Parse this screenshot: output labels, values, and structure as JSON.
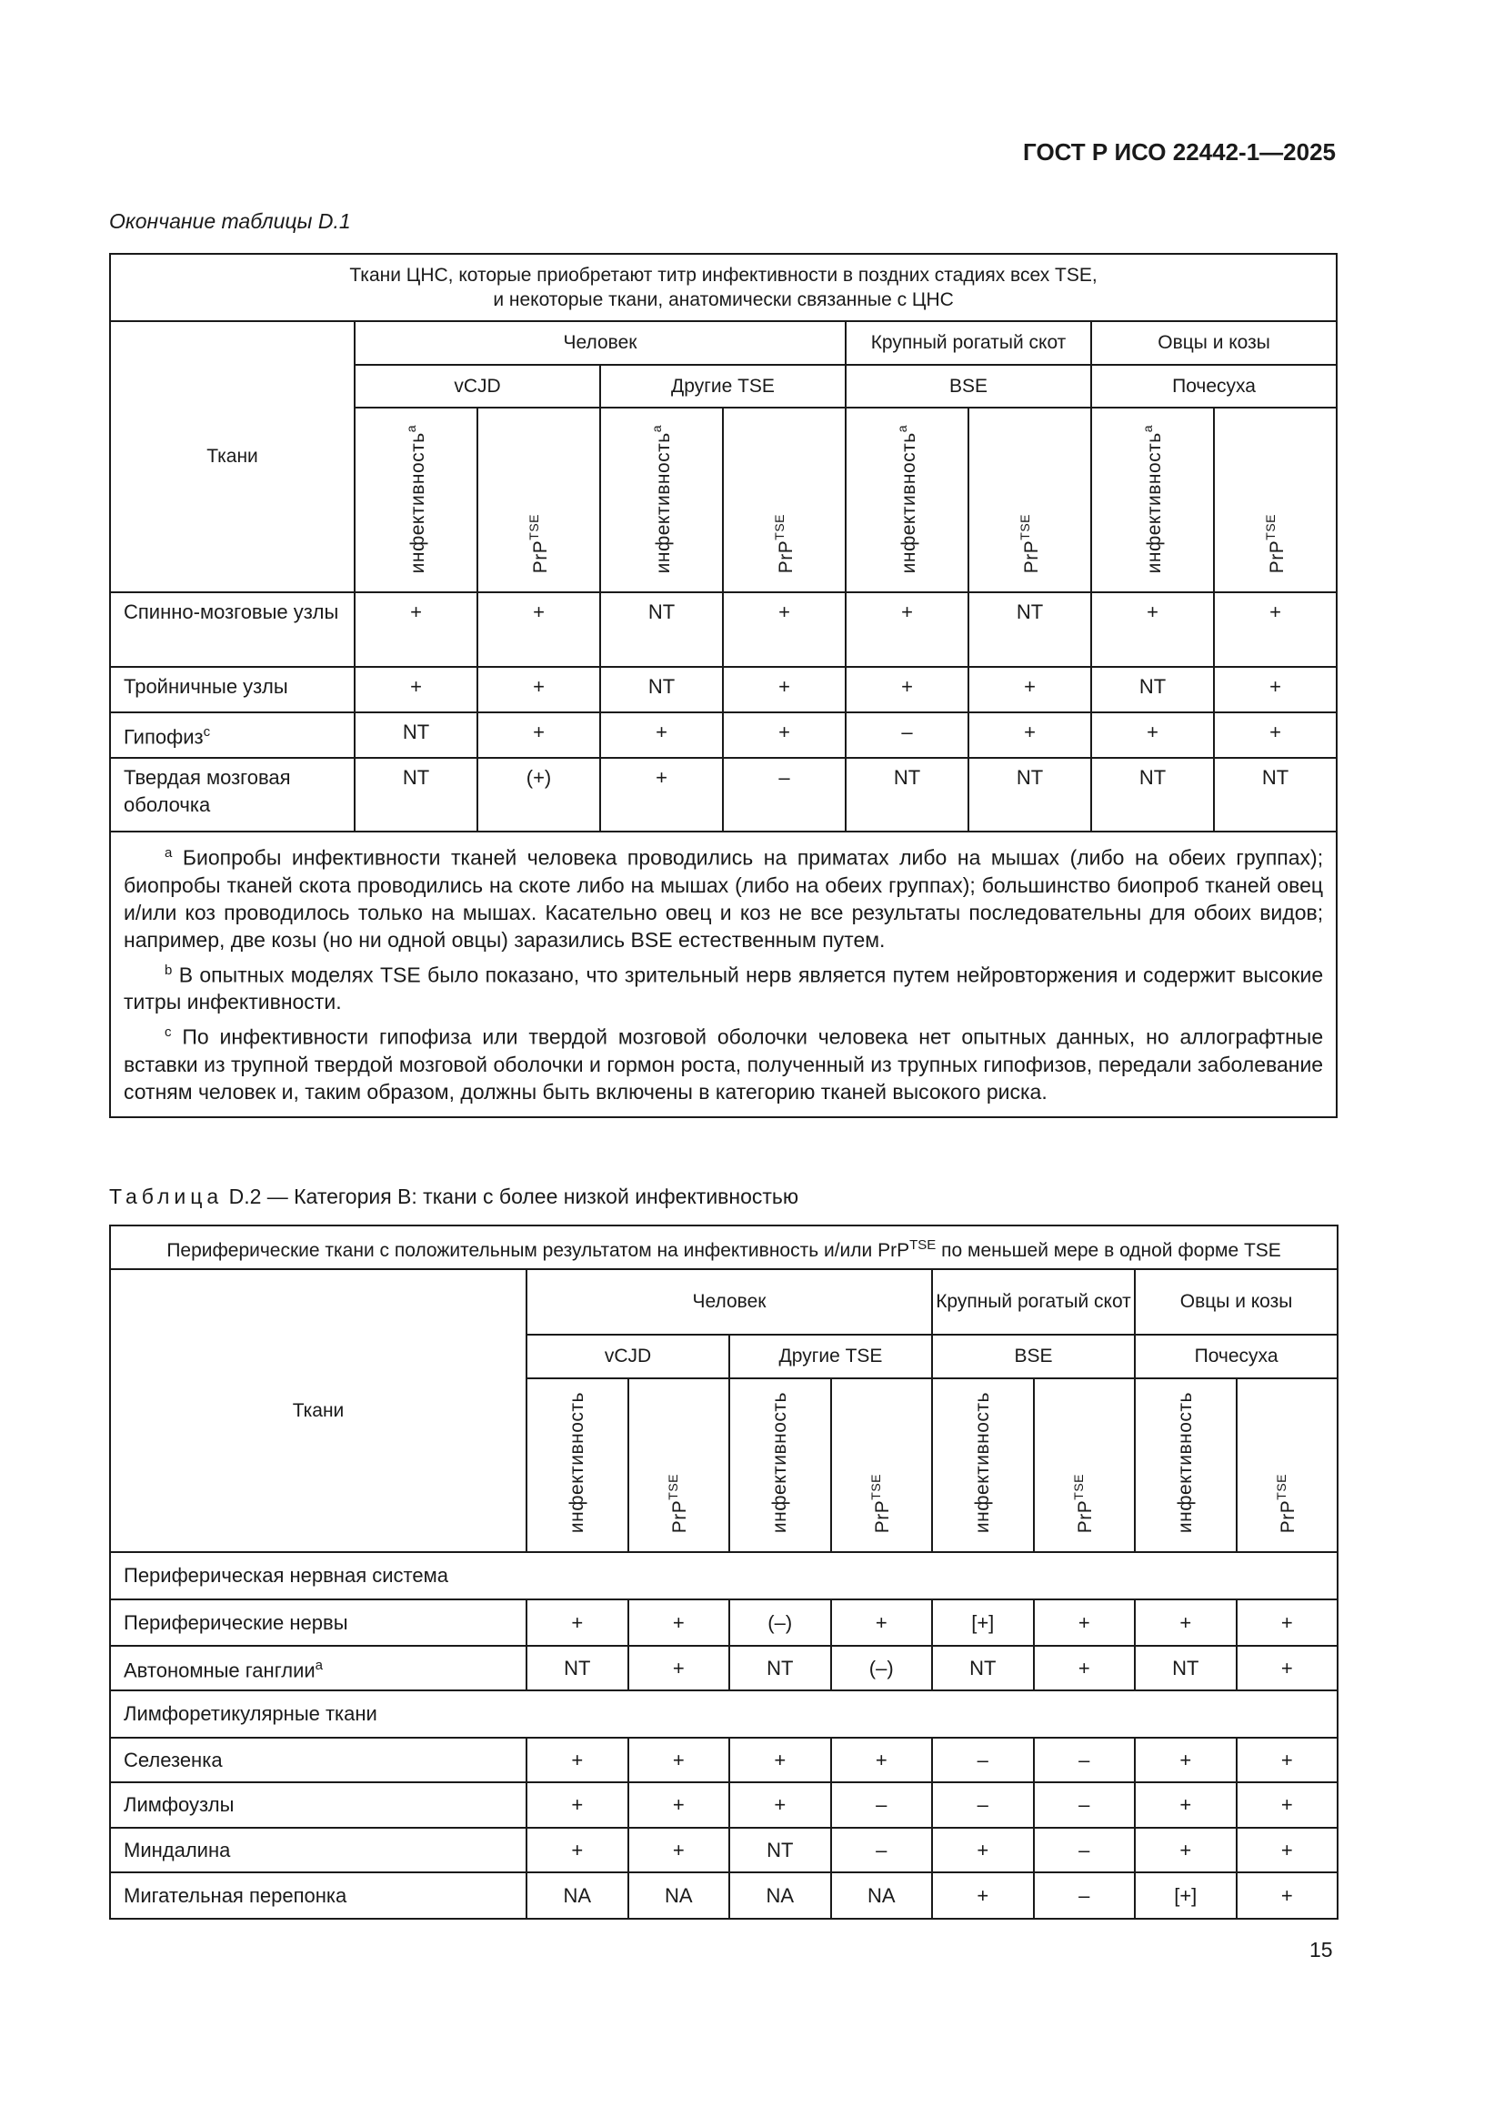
{
  "header": {
    "doc_id": "ГОСТ Р ИСО 22442-1—2025"
  },
  "table1": {
    "continuation_label": "Окончание таблицы D.1",
    "title_line1": "Ткани ЦНС, которые приобретают титр инфективности в поздних стадиях всех TSE,",
    "title_line2": "и некоторые ткани, анатомически связанные с ЦНС",
    "tissue_header": "Ткани",
    "groups": [
      "Человек",
      "Крупный рогатый скот",
      "Овцы и козы"
    ],
    "subgroups": [
      "vCJD",
      "Другие TSE",
      "BSE",
      "Почесуха"
    ],
    "infectivity_label": "инфективность",
    "infectivity_sup": "a",
    "prp_label": "PrP",
    "prp_sup": "TSE",
    "rows": [
      {
        "tissue": "Спинно-мозговые узлы",
        "sup": "",
        "values": [
          "+",
          "+",
          "NT",
          "+",
          "+",
          "NT",
          "+",
          "+"
        ]
      },
      {
        "tissue": "Тройничные узлы",
        "sup": "",
        "values": [
          "+",
          "+",
          "NT",
          "+",
          "+",
          "+",
          "NT",
          "+"
        ]
      },
      {
        "tissue": "Гипофиз",
        "sup": "c",
        "values": [
          "NT",
          "+",
          "+",
          "+",
          "–",
          "+",
          "+",
          "+"
        ]
      },
      {
        "tissue": "Твердая мозговая оболочка",
        "sup": "",
        "values": [
          "NT",
          "(+)",
          "+",
          "–",
          "NT",
          "NT",
          "NT",
          "NT"
        ]
      }
    ],
    "footnotes": [
      {
        "mark": "a",
        "text": "Биопробы инфективности тканей человека проводились на приматах либо на мышах (либо на обеих группах); биопробы тканей скота проводились на скоте либо на мышах (либо на обеих группах); большинство биопроб тканей овец и/или коз проводилось только на мышах. Касательно овец и коз не все результаты последовательны для обоих видов; например, две козы (но ни одной овцы) заразились BSE естественным путем."
      },
      {
        "mark": "b",
        "text": "В опытных моделях TSE было показано, что зрительный нерв является путем нейровторжения и содержит высокие титры инфективности."
      },
      {
        "mark": "c",
        "text": "По инфективности гипофиза или твердой мозговой оболочки человека нет опытных данных, но аллографтные вставки из трупной твердой мозговой оболочки и гормон роста, полученный из трупных гипофизов, передали заболевание сотням человек и, таким образом, должны быть включены в категорию тканей высокого риска."
      }
    ]
  },
  "table2": {
    "caption_prefix": "Таблица",
    "caption": " D.2 — Категория B: ткани с более низкой инфективностью",
    "title_pre": "Периферические ткани с положительным результатом на инфективность и/или PrP",
    "title_sup": "TSE",
    "title_post": " по меньшей мере в одной форме TSE",
    "tissue_header": "Ткани",
    "groups": [
      "Человек",
      "Крупный рогатый скот",
      "Овцы и козы"
    ],
    "subgroups": [
      "vCJD",
      "Другие TSE",
      "BSE",
      "Почесуха"
    ],
    "infectivity_label": "инфективность",
    "prp_label": "PrP",
    "prp_sup": "TSE",
    "rows": [
      {
        "section": "Периферическая нервная система"
      },
      {
        "tissue": "Периферические нервы",
        "sup": "",
        "values": [
          "+",
          "+",
          "(–)",
          "+",
          "[+]",
          "+",
          "+",
          "+"
        ]
      },
      {
        "tissue": "Автономные ганглии",
        "sup": "a",
        "values": [
          "NT",
          "+",
          "NT",
          "(–)",
          "NT",
          "+",
          "NT",
          "+"
        ]
      },
      {
        "section": "Лимфоретикулярные ткани"
      },
      {
        "tissue": "Селезенка",
        "sup": "",
        "values": [
          "+",
          "+",
          "+",
          "+",
          "–",
          "–",
          "+",
          "+"
        ]
      },
      {
        "tissue": "Лимфоузлы",
        "sup": "",
        "values": [
          "+",
          "+",
          "+",
          "–",
          "–",
          "–",
          "+",
          "+"
        ]
      },
      {
        "tissue": "Миндалина",
        "sup": "",
        "values": [
          "+",
          "+",
          "NT",
          "–",
          "+",
          "–",
          "+",
          "+"
        ]
      },
      {
        "tissue": "Мигательная перепонка",
        "sup": "",
        "values": [
          "NA",
          "NA",
          "NA",
          "NA",
          "+",
          "–",
          "[+]",
          "+"
        ]
      }
    ]
  },
  "footer": {
    "page_number": "15"
  }
}
